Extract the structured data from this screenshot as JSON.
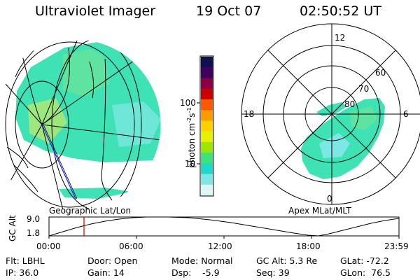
{
  "header": {
    "instrument": "Ultraviolet Imager",
    "date": "19 Oct 07",
    "time": "02:50:52 UT"
  },
  "left_panel": {
    "caption": "Geographic Lat/Lon"
  },
  "right_panel": {
    "caption": "Apex MLat/MLT",
    "mlt_labels": [
      "12",
      "18",
      "6",
      "0"
    ],
    "mlat_labels": [
      "60",
      "70",
      "80"
    ]
  },
  "colorbar": {
    "label_base": "photon cm",
    "exp1": "-2",
    "mid": "s",
    "exp2": "-1",
    "ticks": [
      "100",
      "10"
    ],
    "colors": [
      "#101050",
      "#400060",
      "#8b0045",
      "#cc0000",
      "#ff5a00",
      "#ff9900",
      "#ffd000",
      "#e6f000",
      "#9ee600",
      "#3ee27a",
      "#1fd9c8",
      "#7fe6e6",
      "#dff5f5"
    ]
  },
  "altitude_plot": {
    "ylabel": "GC Alt",
    "y_ticks": [
      "9.0",
      "1.8"
    ],
    "x_ticks": [
      "00:00",
      "06:00",
      "12:00",
      "18:00",
      "23:59"
    ]
  },
  "info": {
    "flt": "Flt: LBHL",
    "ip": "IP: 36.0",
    "door": "Door: Open",
    "gain": "Gain: 14",
    "mode": "Mode: Normal",
    "dsp": "Dsp:    -5.9",
    "gc_alt": "GC Alt: 5.3 Re",
    "seq": "Seq: 39",
    "glat": "GLat: -72.2",
    "glon": "GLon:  76.5"
  }
}
